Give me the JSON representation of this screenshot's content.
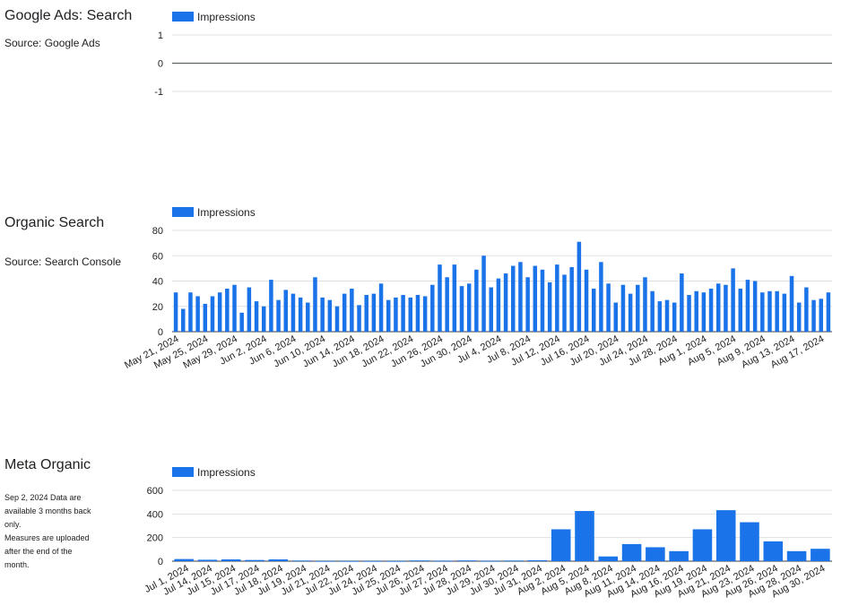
{
  "sections": [
    {
      "title": "Google Ads: Search",
      "subtitle": "Source: Google Ads"
    },
    {
      "title": "Organic Search",
      "subtitle": "Source: Search Console"
    },
    {
      "title": "Meta Organic",
      "note_lines": [
        "Sep 2, 2024 Data are",
        "available 3 months back",
        "only.",
        "Measures are uploaded",
        "after the end of the",
        "month."
      ]
    }
  ],
  "colors": {
    "bar": "#1a73e8",
    "grid": "#e0e0e0",
    "baseline": "#5f6368"
  },
  "chart_data": [
    {
      "type": "bar",
      "legend": "Impressions",
      "legend_position": "top-left",
      "ylim": [
        -1,
        1
      ],
      "yticks": [
        1,
        0,
        -1
      ],
      "categories": [],
      "values": [],
      "grid": true
    },
    {
      "type": "bar",
      "legend": "Impressions",
      "legend_position": "top-left",
      "ylim": [
        0,
        80
      ],
      "yticks": [
        80,
        60,
        40,
        20,
        0
      ],
      "xtick_labels": [
        "May 21, 2024",
        "May 25, 2024",
        "May 29, 2024",
        "Jun 2, 2024",
        "Jun 6, 2024",
        "Jun 10, 2024",
        "Jun 14, 2024",
        "Jun 18, 2024",
        "Jun 22, 2024",
        "Jun 26, 2024",
        "Jun 30, 2024",
        "Jul 4, 2024",
        "Jul 8, 2024",
        "Jul 12, 2024",
        "Jul 16, 2024",
        "Jul 20, 2024",
        "Jul 24, 2024",
        "Jul 28, 2024",
        "Aug 1, 2024",
        "Aug 5, 2024",
        "Aug 9, 2024",
        "Aug 13, 2024",
        "Aug 17, 2024"
      ],
      "values": [
        31,
        18,
        31,
        28,
        22,
        28,
        31,
        34,
        37,
        15,
        35,
        24,
        20,
        41,
        25,
        33,
        30,
        27,
        23,
        43,
        27,
        25,
        20,
        30,
        34,
        21,
        29,
        30,
        38,
        25,
        27,
        29,
        27,
        29,
        28,
        37,
        53,
        43,
        53,
        36,
        38,
        49,
        60,
        35,
        42,
        46,
        52,
        55,
        43,
        52,
        49,
        39,
        53,
        45,
        51,
        71,
        49,
        34,
        55,
        38,
        23,
        37,
        30,
        37,
        43,
        32,
        24,
        25,
        23,
        46,
        29,
        32,
        31,
        34,
        38,
        37,
        50,
        34,
        41,
        40,
        31,
        32,
        32,
        30,
        44,
        23,
        35,
        25,
        26,
        31
      ],
      "grid": true
    },
    {
      "type": "bar",
      "legend": "Impressions",
      "legend_position": "top-left",
      "ylim": [
        0,
        600
      ],
      "yticks": [
        600,
        400,
        200,
        0
      ],
      "categories": [
        "Jul 1, 2024",
        "Jul 14, 2024",
        "Jul 15, 2024",
        "Jul 17, 2024",
        "Jul 18, 2024",
        "Jul 19, 2024",
        "Jul 21, 2024",
        "Jul 22, 2024",
        "Jul 24, 2024",
        "Jul 25, 2024",
        "Jul 26, 2024",
        "Jul 27, 2024",
        "Jul 28, 2024",
        "Jul 29, 2024",
        "Jul 30, 2024",
        "Jul 31, 2024",
        "Aug 2, 2024",
        "Aug 5, 2024",
        "Aug 8, 2024",
        "Aug 11, 2024",
        "Aug 14, 2024",
        "Aug 16, 2024",
        "Aug 19, 2024",
        "Aug 21, 2024",
        "Aug 23, 2024",
        "Aug 26, 2024",
        "Aug 28, 2024",
        "Aug 30, 2024"
      ],
      "values": [
        18,
        12,
        15,
        10,
        15,
        5,
        2,
        2,
        2,
        2,
        6,
        4,
        6,
        3,
        5,
        8,
        270,
        425,
        40,
        145,
        118,
        85,
        270,
        432,
        330,
        168,
        85,
        105
      ],
      "grid": true
    }
  ]
}
